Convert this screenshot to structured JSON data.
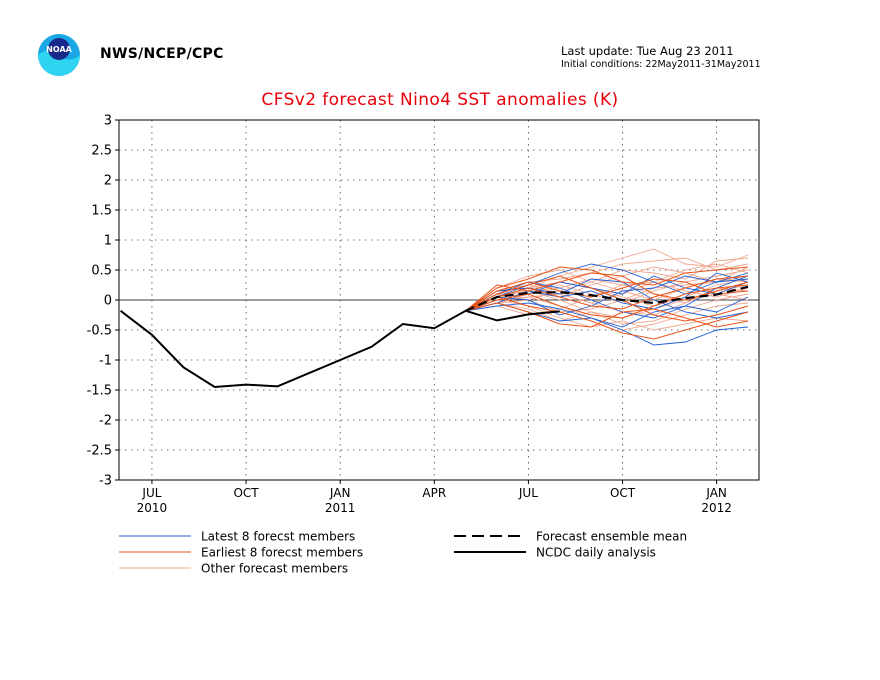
{
  "header": {
    "agency": "NWS/NCEP/CPC",
    "last_update": "Last update: Tue Aug 23 2011",
    "initial_conditions": "Initial conditions: 22May2011-31May2011",
    "logo_text": "NOAA"
  },
  "colors": {
    "title": "#e8000b",
    "latest_members": "#1f5fd6",
    "earliest_members": "#e8541a",
    "other_members": "#f0a890",
    "observed": "#000000",
    "ensemble_mean": "#000000"
  },
  "chart_data": {
    "type": "line",
    "title": "CFSv2 forecast Nino4 SST anomalies (K)",
    "xlabel": "",
    "ylabel": "",
    "ylim": [
      -3,
      3
    ],
    "yticks": [
      -3,
      -2.5,
      -2,
      -1.5,
      -1,
      -0.5,
      0,
      0.5,
      1,
      1.5,
      2,
      2.5,
      3
    ],
    "xlim": [
      "2010-06",
      "2012-02"
    ],
    "xticks": [
      {
        "x": "2010-07",
        "label": "JUL",
        "year": "2010"
      },
      {
        "x": "2010-10",
        "label": "OCT",
        "year": ""
      },
      {
        "x": "2011-01",
        "label": "JAN",
        "year": "2011"
      },
      {
        "x": "2011-04",
        "label": "APR",
        "year": ""
      },
      {
        "x": "2011-07",
        "label": "JUL",
        "year": ""
      },
      {
        "x": "2011-10",
        "label": "OCT",
        "year": ""
      },
      {
        "x": "2012-01",
        "label": "JAN",
        "year": "2012"
      }
    ],
    "grid": true,
    "zero_line": true,
    "legend": [
      {
        "label": "Latest 8 forecst members",
        "style": "latest"
      },
      {
        "label": "Earliest 8 forecst members",
        "style": "earliest"
      },
      {
        "label": "Other forecast members",
        "style": "other"
      },
      {
        "label": "Forecast ensemble mean",
        "style": "mean"
      },
      {
        "label": "NCDC daily analysis",
        "style": "observed"
      }
    ],
    "observed": {
      "name": "NCDC daily analysis",
      "x": [
        "2010-06",
        "2010-07",
        "2010-08",
        "2010-09",
        "2010-10",
        "2010-11",
        "2010-12",
        "2011-01",
        "2011-02",
        "2011-03",
        "2011-04",
        "2011-05",
        "2011-06",
        "2011-07",
        "2011-08"
      ],
      "y": [
        -0.18,
        -0.58,
        -1.12,
        -1.45,
        -1.41,
        -1.44,
        -1.22,
        -1.0,
        -0.78,
        -0.4,
        -0.47,
        -0.18,
        -0.34,
        -0.24,
        -0.19
      ]
    },
    "ensemble_mean": {
      "name": "Forecast ensemble mean",
      "x": [
        "2011-05",
        "2011-06",
        "2011-07",
        "2011-08",
        "2011-09",
        "2011-10",
        "2011-11",
        "2011-12",
        "2012-01",
        "2012-02"
      ],
      "y": [
        -0.18,
        0.05,
        0.12,
        0.13,
        0.08,
        0.0,
        -0.05,
        0.03,
        0.09,
        0.22
      ]
    },
    "members": {
      "x": [
        "2011-05",
        "2011-06",
        "2011-07",
        "2011-08",
        "2011-09",
        "2011-10",
        "2011-11",
        "2011-12",
        "2012-01",
        "2012-02"
      ],
      "latest": [
        [
          -0.18,
          0.05,
          0.25,
          0.45,
          0.6,
          0.5,
          0.3,
          0.1,
          0.3,
          0.45
        ],
        [
          -0.18,
          -0.05,
          -0.2,
          -0.35,
          -0.3,
          -0.5,
          -0.75,
          -0.7,
          -0.5,
          -0.45
        ],
        [
          -0.18,
          0.1,
          0.3,
          0.2,
          0.0,
          -0.2,
          -0.3,
          -0.1,
          0.2,
          0.4
        ],
        [
          -0.18,
          0.0,
          0.1,
          0.3,
          0.2,
          0.1,
          0.4,
          0.2,
          0.1,
          0.3
        ],
        [
          -0.18,
          -0.1,
          -0.05,
          -0.15,
          -0.3,
          -0.45,
          -0.2,
          -0.1,
          -0.2,
          0.05
        ],
        [
          -0.18,
          0.15,
          0.2,
          0.1,
          0.35,
          0.3,
          0.0,
          -0.2,
          -0.3,
          -0.2
        ],
        [
          -0.18,
          0.05,
          0.0,
          -0.25,
          -0.1,
          0.15,
          0.2,
          0.4,
          0.3,
          0.35
        ],
        [
          -0.18,
          -0.05,
          0.15,
          0.05,
          0.15,
          -0.05,
          -0.15,
          0.05,
          0.45,
          0.3
        ]
      ],
      "earliest": [
        [
          -0.18,
          0.2,
          0.35,
          0.55,
          0.5,
          0.3,
          0.25,
          0.45,
          0.5,
          0.55
        ],
        [
          -0.18,
          0.05,
          -0.1,
          -0.2,
          -0.35,
          -0.55,
          -0.65,
          -0.5,
          -0.35,
          -0.2
        ],
        [
          -0.18,
          0.1,
          0.25,
          0.4,
          0.2,
          0.0,
          -0.25,
          -0.35,
          -0.25,
          -0.1
        ],
        [
          -0.18,
          0.0,
          0.1,
          -0.1,
          -0.25,
          -0.3,
          -0.1,
          0.1,
          0.2,
          0.25
        ],
        [
          -0.18,
          0.15,
          0.3,
          0.15,
          0.05,
          0.2,
          0.35,
          0.3,
          0.1,
          0.15
        ],
        [
          -0.18,
          -0.05,
          -0.2,
          -0.4,
          -0.45,
          -0.2,
          -0.15,
          -0.3,
          -0.45,
          -0.35
        ],
        [
          -0.18,
          0.25,
          0.15,
          0.3,
          0.45,
          0.4,
          0.1,
          0.0,
          0.15,
          0.3
        ],
        [
          -0.18,
          0.05,
          0.2,
          0.05,
          -0.1,
          -0.15,
          0.05,
          0.2,
          0.35,
          0.4
        ]
      ],
      "other": [
        [
          -0.18,
          0.05,
          0.2,
          0.4,
          0.55,
          0.7,
          0.85,
          0.6,
          0.55,
          0.75
        ],
        [
          -0.18,
          0.1,
          0.3,
          0.35,
          0.45,
          0.6,
          0.65,
          0.7,
          0.5,
          0.6
        ],
        [
          -0.18,
          -0.05,
          0.0,
          0.15,
          0.3,
          0.5,
          0.45,
          0.35,
          0.65,
          0.7
        ],
        [
          -0.18,
          0.0,
          -0.1,
          -0.3,
          -0.45,
          -0.35,
          -0.5,
          -0.4,
          -0.3,
          -0.35
        ],
        [
          -0.18,
          0.1,
          0.15,
          0.0,
          -0.2,
          -0.4,
          -0.35,
          -0.15,
          0.0,
          0.1
        ],
        [
          -0.18,
          0.05,
          0.1,
          0.25,
          0.1,
          -0.05,
          0.15,
          0.3,
          0.4,
          0.5
        ],
        [
          -0.18,
          -0.1,
          -0.25,
          -0.15,
          0.05,
          0.25,
          0.3,
          0.15,
          0.05,
          0.2
        ],
        [
          -0.18,
          0.15,
          0.25,
          0.1,
          -0.05,
          0.1,
          0.3,
          0.5,
          0.6,
          0.45
        ],
        [
          -0.18,
          0.0,
          0.05,
          -0.1,
          -0.3,
          -0.5,
          -0.4,
          -0.25,
          -0.1,
          -0.05
        ],
        [
          -0.18,
          0.05,
          0.2,
          0.3,
          0.2,
          0.05,
          -0.1,
          0.05,
          0.25,
          0.35
        ],
        [
          -0.18,
          -0.05,
          0.1,
          0.2,
          0.35,
          0.25,
          0.1,
          -0.05,
          0.15,
          0.25
        ],
        [
          -0.18,
          0.1,
          0.0,
          -0.2,
          -0.15,
          0.0,
          0.2,
          0.25,
          0.3,
          0.55
        ],
        [
          -0.18,
          0.2,
          0.4,
          0.5,
          0.3,
          0.15,
          0.0,
          0.2,
          0.35,
          0.3
        ],
        [
          -0.18,
          -0.05,
          -0.15,
          -0.35,
          -0.2,
          -0.3,
          -0.15,
          0.0,
          0.1,
          0.0
        ],
        [
          -0.18,
          0.05,
          0.15,
          0.05,
          0.25,
          0.4,
          0.55,
          0.45,
          0.3,
          0.4
        ],
        [
          -0.18,
          0.0,
          0.05,
          0.1,
          -0.05,
          -0.2,
          -0.25,
          -0.05,
          0.2,
          0.15
        ]
      ]
    }
  }
}
